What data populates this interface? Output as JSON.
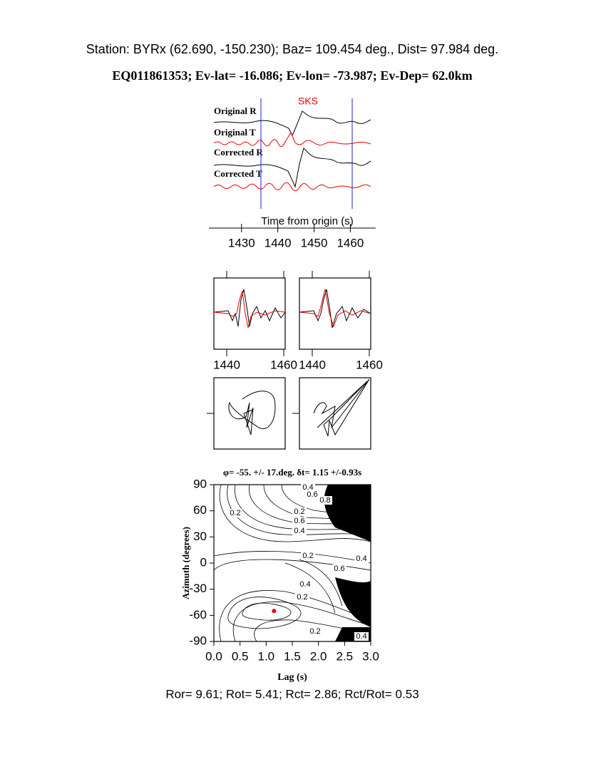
{
  "header": {
    "station": "Station: BYRx (62.690, -150.230); Baz=  109.454 deg., Dist=   97.984 deg.",
    "event": "EQ011861353; Ev-lat= -16.086; Ev-lon= -73.987; Ev-Dep= 62.0km"
  },
  "traces": {
    "phase": "SKS",
    "labels": [
      "Original R",
      "Original T",
      "Corrected R",
      "Corrected T"
    ],
    "xlabel": "Time from origin (s)",
    "xlim": [
      1421,
      1467
    ],
    "xticks": [
      1430,
      1440,
      1450,
      1460
    ]
  },
  "waveform_panels": {
    "xlim": [
      1435.5,
      1460.5
    ],
    "xticks": [
      1440,
      1460
    ]
  },
  "grid_search": {
    "title": "φ= -55. +/- 17.deg. δt= 1.15 +/-0.93s",
    "xlabel": "Lag (s)",
    "ylabel": "Azimuth (degrees)",
    "xlim": [
      0,
      3
    ],
    "ylim": [
      -90,
      90
    ],
    "xticks": [
      {
        "value": 0,
        "label": "0.0"
      },
      {
        "value": 0.5,
        "label": "0.5"
      },
      {
        "value": 1,
        "label": "1.0"
      },
      {
        "value": 1.5,
        "label": "1.5"
      },
      {
        "value": 2,
        "label": "2.0"
      },
      {
        "value": 2.5,
        "label": "2.5"
      },
      {
        "value": 3,
        "label": "3.0"
      }
    ],
    "yticks": [
      90,
      60,
      30,
      0,
      -30,
      -60,
      -90
    ],
    "contour_labels": [
      "0.4",
      "0.6",
      "0.8",
      "0.2",
      "0.6",
      "0.4",
      "0.2",
      "0.2",
      "0.6",
      "0.4",
      "0.4",
      "0.2",
      "0.2",
      "0.4"
    ],
    "best": {
      "dt": 1.15,
      "phi": -55
    }
  },
  "footer": "Ror= 9.61; Rot= 5.41; Rct= 2.86; Rct/Rot= 0.53"
}
